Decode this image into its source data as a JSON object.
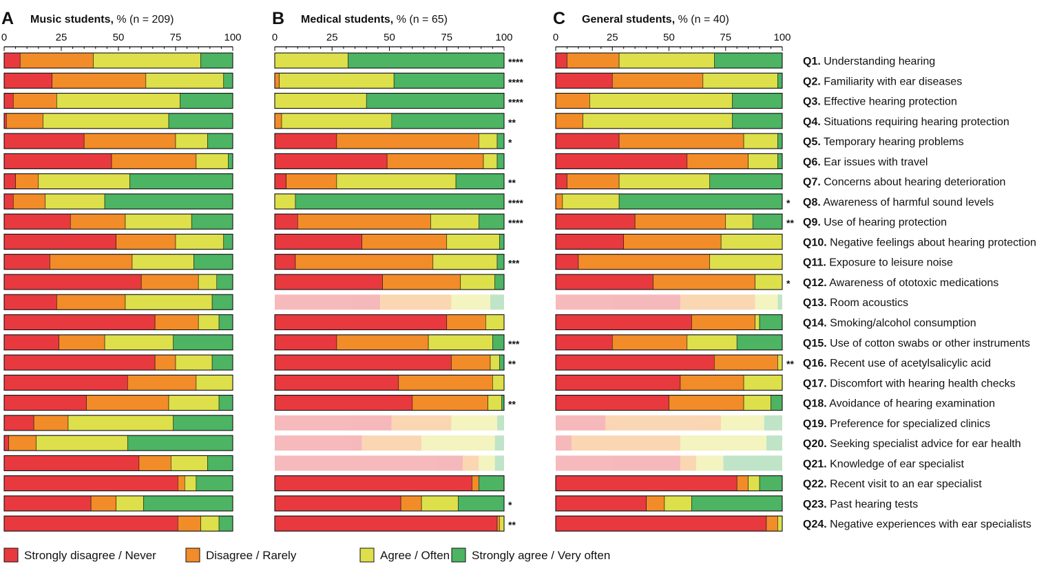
{
  "colors": {
    "strongly_disagree": "#e8393f",
    "disagree": "#f28c28",
    "agree": "#dde04a",
    "strongly_agree": "#4cb462",
    "axis": "#000000",
    "text": "#111111"
  },
  "chart_data": [
    {
      "type": "bar",
      "orientation": "horizontal",
      "stacked": true,
      "panel_letter": "A",
      "title_bold": "Music students,",
      "title_rest": " % (n = 209)",
      "xlim": [
        0,
        100
      ],
      "xticks": [
        "0",
        "25",
        "50",
        "75",
        "100"
      ],
      "series": [
        {
          "name": "Strongly disagree / Never",
          "values": [
            7,
            21,
            4,
            1,
            35,
            47,
            5,
            4,
            29,
            49,
            20,
            60,
            23,
            66,
            24,
            66,
            54,
            36,
            13,
            2,
            59,
            76,
            38,
            76
          ]
        },
        {
          "name": "Disagree / Rarely",
          "values": [
            32,
            41,
            19,
            16,
            40,
            37,
            10,
            14,
            24,
            26,
            36,
            25,
            30,
            19,
            20,
            9,
            30,
            36,
            15,
            12,
            14,
            3,
            11,
            10
          ]
        },
        {
          "name": "Agree / Often",
          "values": [
            47,
            34,
            54,
            55,
            14,
            14,
            40,
            26,
            29,
            21,
            27,
            8,
            38,
            9,
            30,
            16,
            16,
            22,
            46,
            40,
            16,
            5,
            12,
            8
          ]
        },
        {
          "name": "Strongly agree / Very often",
          "values": [
            14,
            4,
            23,
            28,
            11,
            2,
            45,
            56,
            18,
            4,
            17,
            7,
            9,
            6,
            26,
            9,
            0,
            6,
            26,
            46,
            11,
            16,
            39,
            6
          ]
        }
      ],
      "faded_rows": [],
      "significance": []
    },
    {
      "type": "bar",
      "orientation": "horizontal",
      "stacked": true,
      "panel_letter": "B",
      "title_bold": "Medical students,",
      "title_rest": " % (n = 65)",
      "xlim": [
        0,
        100
      ],
      "xticks": [
        "0",
        "25",
        "50",
        "75",
        "100"
      ],
      "series": [
        {
          "name": "Strongly disagree / Never",
          "values": [
            0,
            0,
            0,
            0,
            27,
            49,
            5,
            0,
            10,
            38,
            9,
            47,
            46,
            75,
            27,
            77,
            54,
            60,
            51,
            38,
            82,
            86,
            55,
            97
          ]
        },
        {
          "name": "Disagree / Rarely",
          "values": [
            0,
            2,
            0,
            3,
            62,
            42,
            22,
            0,
            58,
            37,
            60,
            34,
            31,
            17,
            40,
            17,
            41,
            33,
            26,
            26,
            7,
            3,
            9,
            1
          ]
        },
        {
          "name": "Agree / Often",
          "values": [
            32,
            50,
            40,
            48,
            8,
            6,
            52,
            9,
            21,
            23,
            28,
            15,
            17,
            8,
            28,
            4,
            5,
            6,
            20,
            32,
            7,
            0,
            16,
            2
          ]
        },
        {
          "name": "Strongly agree / Very often",
          "values": [
            68,
            48,
            60,
            49,
            3,
            3,
            21,
            91,
            11,
            2,
            3,
            4,
            6,
            0,
            5,
            2,
            0,
            1,
            3,
            4,
            4,
            11,
            20,
            0
          ]
        }
      ],
      "faded_rows": [
        12,
        18,
        19,
        20
      ],
      "significance": [
        "****",
        "****",
        "****",
        "**",
        "*",
        "",
        "**",
        "****",
        "****",
        "",
        "***",
        "",
        "",
        "",
        "***",
        "**",
        "",
        "**",
        "",
        "",
        "",
        "",
        "*",
        "**"
      ]
    },
    {
      "type": "bar",
      "orientation": "horizontal",
      "stacked": true,
      "panel_letter": "C",
      "title_bold": "General students,",
      "title_rest": " % (n = 40)",
      "xlim": [
        0,
        100
      ],
      "xticks": [
        "0",
        "25",
        "50",
        "75",
        "100"
      ],
      "series": [
        {
          "name": "Strongly disagree / Never",
          "values": [
            5,
            25,
            0,
            0,
            28,
            58,
            5,
            0,
            35,
            30,
            10,
            43,
            55,
            60,
            25,
            70,
            55,
            50,
            22,
            7,
            55,
            80,
            40,
            93
          ]
        },
        {
          "name": "Disagree / Rarely",
          "values": [
            23,
            40,
            15,
            12,
            55,
            27,
            23,
            3,
            40,
            43,
            58,
            45,
            33,
            28,
            33,
            28,
            28,
            33,
            51,
            48,
            7,
            5,
            8,
            5
          ]
        },
        {
          "name": "Agree / Often",
          "values": [
            42,
            33,
            63,
            66,
            15,
            13,
            40,
            25,
            12,
            27,
            32,
            12,
            10,
            2,
            22,
            2,
            17,
            12,
            19,
            38,
            12,
            5,
            12,
            2
          ]
        },
        {
          "name": "Strongly agree / Very often",
          "values": [
            30,
            2,
            22,
            22,
            2,
            2,
            32,
            72,
            13,
            0,
            0,
            0,
            2,
            10,
            20,
            0,
            0,
            5,
            8,
            7,
            26,
            10,
            40,
            0
          ]
        }
      ],
      "faded_rows": [
        12,
        18,
        19,
        20
      ],
      "significance": [
        "",
        "",
        "",
        "",
        "",
        "",
        "",
        "*",
        "**",
        "",
        "",
        "*",
        "",
        "",
        "",
        "**",
        "",
        "",
        "",
        "",
        "",
        "",
        "",
        ""
      ]
    }
  ],
  "questions": [
    {
      "id": "Q1.",
      "text": " Understanding hearing"
    },
    {
      "id": "Q2.",
      "text": " Familiarity with ear diseases"
    },
    {
      "id": "Q3.",
      "text": " Effective hearing protection"
    },
    {
      "id": "Q4.",
      "text": " Situations requiring hearing protection"
    },
    {
      "id": "Q5.",
      "text": " Temporary hearing problems"
    },
    {
      "id": "Q6.",
      "text": " Ear issues with travel"
    },
    {
      "id": "Q7.",
      "text": " Concerns about hearing deterioration"
    },
    {
      "id": "Q8.",
      "text": " Awareness of harmful sound levels"
    },
    {
      "id": "Q9.",
      "text": " Use of hearing protection"
    },
    {
      "id": "Q10.",
      "text": " Negative feelings about hearing protection"
    },
    {
      "id": "Q11.",
      "text": " Exposure to leisure noise"
    },
    {
      "id": "Q12.",
      "text": " Awareness of ototoxic medications"
    },
    {
      "id": "Q13.",
      "text": " Room acoustics"
    },
    {
      "id": "Q14.",
      "text": " Smoking/alcohol consumption"
    },
    {
      "id": "Q15.",
      "text": " Use of cotton swabs or other instruments"
    },
    {
      "id": "Q16.",
      "text": " Recent use of acetylsalicylic acid"
    },
    {
      "id": "Q17.",
      "text": " Discomfort with hearing health checks"
    },
    {
      "id": "Q18.",
      "text": " Avoidance of hearing examination"
    },
    {
      "id": "Q19.",
      "text": " Preference for specialized clinics"
    },
    {
      "id": "Q20.",
      "text": " Seeking specialist advice for ear health"
    },
    {
      "id": "Q21.",
      "text": " Knowledge of ear specialist"
    },
    {
      "id": "Q22.",
      "text": " Recent visit to an ear specialist"
    },
    {
      "id": "Q23.",
      "text": " Past hearing tests"
    },
    {
      "id": "Q24.",
      "text": " Negative experiences with ear specialists"
    }
  ],
  "legend": [
    {
      "label": "Strongly disagree / Never",
      "color_key": "strongly_disagree"
    },
    {
      "label": "Disagree / Rarely",
      "color_key": "disagree"
    },
    {
      "label": "Agree / Often",
      "color_key": "agree"
    },
    {
      "label": "Strongly agree / Very often",
      "color_key": "strongly_agree"
    }
  ]
}
